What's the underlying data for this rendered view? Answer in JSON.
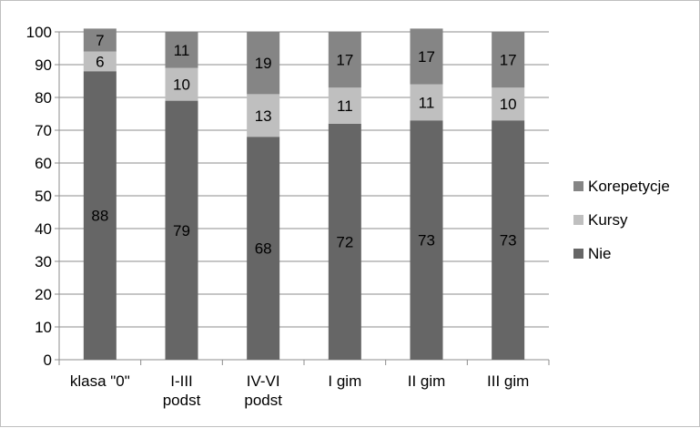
{
  "chart_data": {
    "type": "bar",
    "stacked": true,
    "categories": [
      "klasa \"0\"",
      "I-III podst",
      "IV-VI podst",
      "I gim",
      "II gim",
      "III gim"
    ],
    "category_lines": [
      [
        "klasa \"0\""
      ],
      [
        "I-III",
        "podst"
      ],
      [
        "IV-VI",
        "podst"
      ],
      [
        "I gim"
      ],
      [
        "II gim"
      ],
      [
        "III gim"
      ]
    ],
    "series": [
      {
        "name": "Nie",
        "values": [
          88,
          79,
          68,
          72,
          73,
          73
        ],
        "color": "#666666"
      },
      {
        "name": "Kursy",
        "values": [
          6,
          10,
          13,
          11,
          11,
          10
        ],
        "color": "#bfbfbf"
      },
      {
        "name": "Korepetycje",
        "values": [
          7,
          11,
          19,
          17,
          17,
          17
        ],
        "color": "#858585"
      }
    ],
    "ylim": [
      0,
      100
    ],
    "yticks": [
      0,
      10,
      20,
      30,
      40,
      50,
      60,
      70,
      80,
      90,
      100
    ],
    "grid": true,
    "legend": "right",
    "legend_order": [
      "Korepetycje",
      "Kursy",
      "Nie"
    ],
    "title": "",
    "xlabel": "",
    "ylabel": ""
  }
}
